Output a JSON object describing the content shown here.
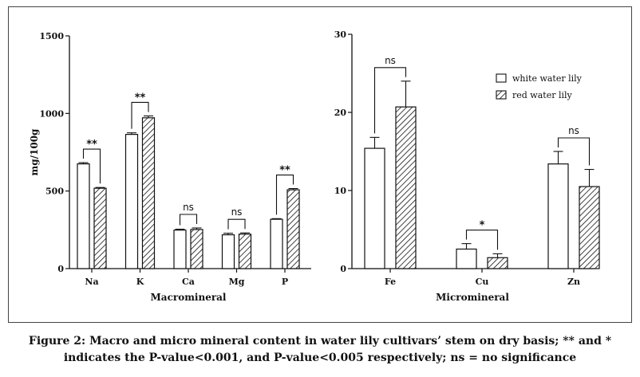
{
  "caption": {
    "line1": "Figure 2: Macro and micro mineral content in water lily cultivars’ stem on dry basis; ** and *",
    "line2": "indicates the P-value<0.001, and P-value<0.005 respectively; ns = no significance"
  },
  "colors": {
    "stroke": "#111111",
    "white_fill": "#ffffff"
  },
  "legend": {
    "items": [
      {
        "label": "white water lily",
        "pattern": "solid-white"
      },
      {
        "label": "red water lily",
        "pattern": "diagonal-hatch"
      }
    ],
    "position": "top-right of micromineral panel"
  },
  "chart_data": [
    {
      "type": "bar",
      "title": "",
      "xlabel": "Macromineral",
      "ylabel": "mg/100g",
      "ylim": [
        0,
        1500
      ],
      "yticks": [
        "0",
        "500",
        "1000",
        "1500"
      ],
      "grid": false,
      "categories": [
        "Na",
        "K",
        "Ca",
        "Mg",
        "P"
      ],
      "series": [
        {
          "name": "white water lily",
          "values": [
            675,
            865,
            248,
            218,
            318
          ],
          "errors": [
            8,
            10,
            6,
            10,
            4
          ]
        },
        {
          "name": "red water lily",
          "values": [
            518,
            972,
            252,
            222,
            508
          ],
          "errors": [
            5,
            12,
            10,
            8,
            8
          ]
        }
      ],
      "significance": [
        "**",
        "**",
        "ns",
        "ns",
        "**"
      ]
    },
    {
      "type": "bar",
      "title": "",
      "xlabel": "Micromineral",
      "ylabel": "",
      "ylim": [
        0,
        30
      ],
      "yticks": [
        "0",
        "10",
        "20",
        "30"
      ],
      "grid": false,
      "categories": [
        "Fe",
        "Cu",
        "Zn"
      ],
      "series": [
        {
          "name": "white water lily",
          "values": [
            15.4,
            2.5,
            13.4
          ],
          "errors": [
            1.4,
            0.7,
            1.6
          ]
        },
        {
          "name": "red water lily",
          "values": [
            20.7,
            1.4,
            10.5
          ],
          "errors": [
            3.3,
            0.5,
            2.2
          ]
        }
      ],
      "significance": [
        "ns",
        "*",
        "ns"
      ]
    }
  ]
}
